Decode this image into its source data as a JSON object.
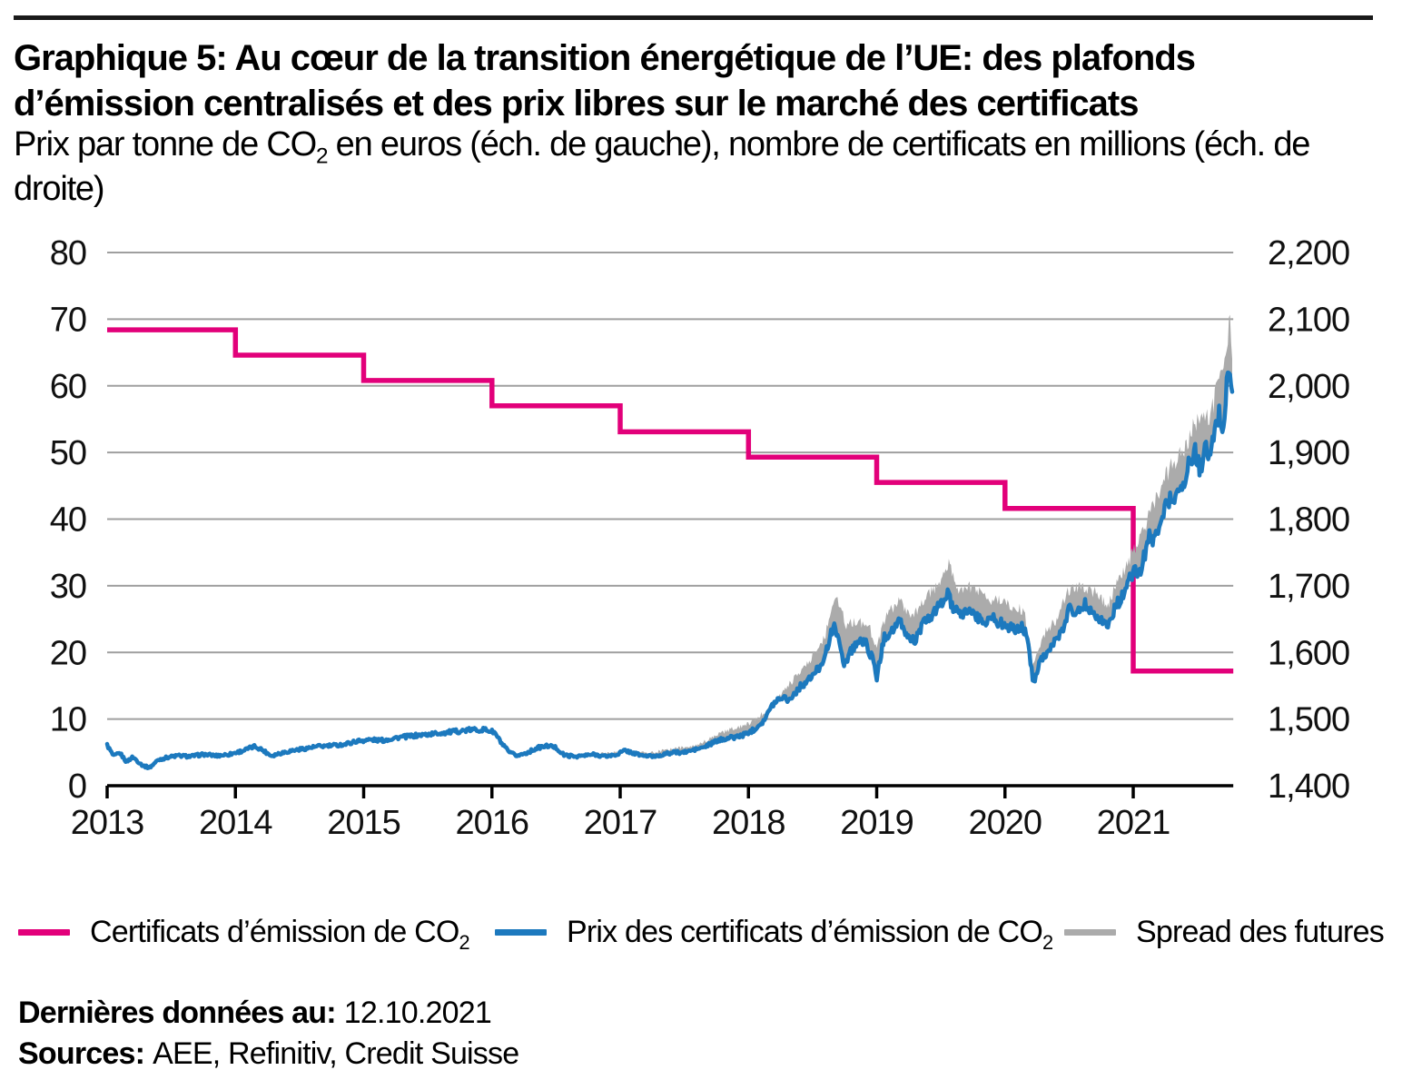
{
  "header": {
    "title": "Graphique 5: Au cœur de la transition énergétique de l’UE: des plafonds d’émission centralisés et des prix libres sur le marché des certificats",
    "subtitle": {
      "pre": "Prix par tonne de CO",
      "sub": "2",
      "post": " en euros (éch. de gauche), nombre de certificats en millions (éch. de droite)"
    }
  },
  "chart_data": {
    "type": "line",
    "grid": true,
    "x_axis": {
      "min": 2013.0,
      "max": 2021.78,
      "tick_values": [
        2013,
        2014,
        2015,
        2016,
        2017,
        2018,
        2019,
        2020,
        2021
      ],
      "tick_labels": [
        "2013",
        "2014",
        "2015",
        "2016",
        "2017",
        "2018",
        "2019",
        "2020",
        "2021"
      ]
    },
    "y_left_axis": {
      "min": 0,
      "max": 80,
      "tick_values": [
        0,
        10,
        20,
        30,
        40,
        50,
        60,
        70,
        80
      ],
      "tick_labels": [
        "0",
        "10",
        "20",
        "30",
        "40",
        "50",
        "60",
        "70",
        "80"
      ]
    },
    "y_right_axis": {
      "min": 1400,
      "max": 2200,
      "tick_values": [
        1400,
        1500,
        1600,
        1700,
        1800,
        1900,
        2000,
        2100,
        2200
      ],
      "tick_labels": [
        "1,400",
        "1,500",
        "1,600",
        "1,700",
        "1,800",
        "1,900",
        "2,000",
        "2,100",
        "2,200"
      ]
    },
    "series": [
      {
        "name": "Certificats d’émission de CO2",
        "axis": "right",
        "style": "step",
        "color": "#E2007A",
        "points": [
          [
            2013,
            2084
          ],
          [
            2014,
            2046
          ],
          [
            2015,
            2008
          ],
          [
            2016,
            1970
          ],
          [
            2017,
            1931
          ],
          [
            2018,
            1893
          ],
          [
            2019,
            1855
          ],
          [
            2020,
            1816
          ],
          [
            2021,
            1572
          ]
        ]
      },
      {
        "name": "Prix des certificats d’émission de CO2",
        "axis": "left",
        "style": "line",
        "color": "#1C79BE",
        "points": [
          [
            2013.0,
            6.1
          ],
          [
            2013.05,
            4.4
          ],
          [
            2013.1,
            4.9
          ],
          [
            2013.15,
            3.6
          ],
          [
            2013.2,
            4.3
          ],
          [
            2013.28,
            3.0
          ],
          [
            2013.33,
            2.7
          ],
          [
            2013.4,
            3.9
          ],
          [
            2013.48,
            4.3
          ],
          [
            2013.55,
            4.5
          ],
          [
            2013.65,
            4.4
          ],
          [
            2013.75,
            4.7
          ],
          [
            2013.85,
            4.5
          ],
          [
            2013.95,
            4.7
          ],
          [
            2014.05,
            5.2
          ],
          [
            2014.15,
            5.9
          ],
          [
            2014.2,
            5.5
          ],
          [
            2014.28,
            4.5
          ],
          [
            2014.35,
            4.9
          ],
          [
            2014.45,
            5.3
          ],
          [
            2014.55,
            5.6
          ],
          [
            2014.65,
            5.9
          ],
          [
            2014.75,
            6.0
          ],
          [
            2014.85,
            6.2
          ],
          [
            2014.95,
            6.7
          ],
          [
            2015.05,
            6.9
          ],
          [
            2015.15,
            6.8
          ],
          [
            2015.25,
            7.2
          ],
          [
            2015.35,
            7.4
          ],
          [
            2015.45,
            7.6
          ],
          [
            2015.55,
            7.8
          ],
          [
            2015.65,
            8.0
          ],
          [
            2015.75,
            8.2
          ],
          [
            2015.85,
            8.4
          ],
          [
            2015.95,
            8.4
          ],
          [
            2016.02,
            8.0
          ],
          [
            2016.08,
            6.2
          ],
          [
            2016.14,
            4.9
          ],
          [
            2016.2,
            4.5
          ],
          [
            2016.28,
            5.0
          ],
          [
            2016.36,
            5.7
          ],
          [
            2016.44,
            6.0
          ],
          [
            2016.5,
            5.7
          ],
          [
            2016.56,
            4.6
          ],
          [
            2016.64,
            4.4
          ],
          [
            2016.72,
            4.5
          ],
          [
            2016.8,
            4.7
          ],
          [
            2016.88,
            4.4
          ],
          [
            2016.96,
            4.6
          ],
          [
            2017.04,
            5.3
          ],
          [
            2017.1,
            4.9
          ],
          [
            2017.18,
            4.5
          ],
          [
            2017.26,
            4.4
          ],
          [
            2017.34,
            4.7
          ],
          [
            2017.42,
            5.0
          ],
          [
            2017.5,
            5.0
          ],
          [
            2017.58,
            5.4
          ],
          [
            2017.66,
            5.8
          ],
          [
            2017.74,
            6.6
          ],
          [
            2017.82,
            7.1
          ],
          [
            2017.9,
            7.3
          ],
          [
            2017.96,
            7.6
          ],
          [
            2018.04,
            8.4
          ],
          [
            2018.12,
            9.8
          ],
          [
            2018.2,
            12.5
          ],
          [
            2018.26,
            13.4
          ],
          [
            2018.32,
            12.9
          ],
          [
            2018.4,
            14.8
          ],
          [
            2018.48,
            16.0
          ],
          [
            2018.56,
            18.0
          ],
          [
            2018.62,
            20.8
          ],
          [
            2018.67,
            24.8
          ],
          [
            2018.71,
            20.8
          ],
          [
            2018.75,
            18.3
          ],
          [
            2018.8,
            20.3
          ],
          [
            2018.86,
            21.8
          ],
          [
            2018.92,
            21.3
          ],
          [
            2018.97,
            18.8
          ],
          [
            2019.0,
            16.2
          ],
          [
            2019.06,
            22.3
          ],
          [
            2019.12,
            23.3
          ],
          [
            2019.18,
            24.6
          ],
          [
            2019.24,
            22.3
          ],
          [
            2019.3,
            21.8
          ],
          [
            2019.36,
            24.2
          ],
          [
            2019.44,
            25.8
          ],
          [
            2019.5,
            27.2
          ],
          [
            2019.55,
            28.9
          ],
          [
            2019.6,
            26.3
          ],
          [
            2019.66,
            25.6
          ],
          [
            2019.72,
            26.6
          ],
          [
            2019.78,
            25.2
          ],
          [
            2019.84,
            24.6
          ],
          [
            2019.9,
            25.3
          ],
          [
            2019.96,
            24.4
          ],
          [
            2020.02,
            24.0
          ],
          [
            2020.08,
            23.3
          ],
          [
            2020.14,
            23.8
          ],
          [
            2020.18,
            22.0
          ],
          [
            2020.22,
            15.2
          ],
          [
            2020.27,
            18.8
          ],
          [
            2020.32,
            19.8
          ],
          [
            2020.38,
            21.3
          ],
          [
            2020.44,
            22.8
          ],
          [
            2020.5,
            26.8
          ],
          [
            2020.56,
            25.8
          ],
          [
            2020.62,
            27.3
          ],
          [
            2020.68,
            26.3
          ],
          [
            2020.74,
            25.1
          ],
          [
            2020.8,
            23.9
          ],
          [
            2020.86,
            26.8
          ],
          [
            2020.92,
            28.6
          ],
          [
            2020.97,
            30.8
          ],
          [
            2021.02,
            32.5
          ],
          [
            2021.05,
            31.6
          ],
          [
            2021.1,
            35.6
          ],
          [
            2021.13,
            37.8
          ],
          [
            2021.16,
            36.4
          ],
          [
            2021.21,
            40.1
          ],
          [
            2021.26,
            42.1
          ],
          [
            2021.3,
            43.8
          ],
          [
            2021.33,
            42.6
          ],
          [
            2021.37,
            46.1
          ],
          [
            2021.4,
            44.5
          ],
          [
            2021.44,
            48.8
          ],
          [
            2021.48,
            50.2
          ],
          [
            2021.52,
            47.3
          ],
          [
            2021.56,
            50.7
          ],
          [
            2021.6,
            49.0
          ],
          [
            2021.64,
            53.5
          ],
          [
            2021.67,
            55.8
          ],
          [
            2021.7,
            53.3
          ],
          [
            2021.72,
            57.0
          ],
          [
            2021.74,
            64.0
          ],
          [
            2021.755,
            60.5
          ],
          [
            2021.77,
            58.8
          ],
          [
            2021.78,
            58.5
          ]
        ]
      },
      {
        "name": "Spread des futures",
        "axis": "left",
        "style": "band-top",
        "color": "#ABABAB",
        "band_start": 2016.85,
        "points": [
          [
            2016.85,
            4.9
          ],
          [
            2017.0,
            5.0
          ],
          [
            2017.2,
            4.9
          ],
          [
            2017.4,
            5.4
          ],
          [
            2017.6,
            6.1
          ],
          [
            2017.8,
            8.0
          ],
          [
            2018.0,
            9.3
          ],
          [
            2018.15,
            11.4
          ],
          [
            2018.3,
            14.8
          ],
          [
            2018.45,
            17.9
          ],
          [
            2018.6,
            22.6
          ],
          [
            2018.67,
            28.4
          ],
          [
            2018.72,
            27.0
          ],
          [
            2018.76,
            23.9
          ],
          [
            2018.85,
            24.9
          ],
          [
            2018.95,
            23.4
          ],
          [
            2019.0,
            20.9
          ],
          [
            2019.08,
            25.9
          ],
          [
            2019.18,
            27.7
          ],
          [
            2019.28,
            25.4
          ],
          [
            2019.4,
            28.4
          ],
          [
            2019.5,
            31.1
          ],
          [
            2019.56,
            33.4
          ],
          [
            2019.64,
            29.5
          ],
          [
            2019.74,
            29.9
          ],
          [
            2019.85,
            28.2
          ],
          [
            2019.95,
            27.7
          ],
          [
            2020.05,
            26.9
          ],
          [
            2020.15,
            26.4
          ],
          [
            2020.22,
            18.4
          ],
          [
            2020.3,
            22.6
          ],
          [
            2020.4,
            24.9
          ],
          [
            2020.5,
            29.6
          ],
          [
            2020.6,
            30.1
          ],
          [
            2020.7,
            29.0
          ],
          [
            2020.8,
            27.1
          ],
          [
            2020.9,
            31.3
          ],
          [
            2021.0,
            35.3
          ],
          [
            2021.1,
            39.3
          ],
          [
            2021.2,
            44.3
          ],
          [
            2021.3,
            48.3
          ],
          [
            2021.4,
            49.9
          ],
          [
            2021.5,
            55.3
          ],
          [
            2021.6,
            54.9
          ],
          [
            2021.67,
            61.5
          ],
          [
            2021.72,
            63.5
          ],
          [
            2021.75,
            71.3
          ],
          [
            2021.77,
            63.0
          ],
          [
            2021.78,
            61.5
          ]
        ]
      }
    ]
  },
  "legend": {
    "items": [
      {
        "pre": "Certificats d’émission de CO",
        "sub": "2"
      },
      {
        "pre": "Prix des certificats d’émission de CO",
        "sub": "2"
      },
      {
        "pre": "Spread des futures",
        "sub": ""
      }
    ]
  },
  "footer": {
    "last_data_label": "Dernières données au:",
    "last_data_value": "12.10.2021",
    "sources_label": "Sources:",
    "sources_value": "AEE, Refinitiv, Credit Suisse"
  },
  "colors": {
    "cap_line": "#E2007A",
    "price_line": "#1C79BE",
    "spread_band": "#ABABAB",
    "gridline": "#9F9F9F",
    "axis": "#000000"
  }
}
